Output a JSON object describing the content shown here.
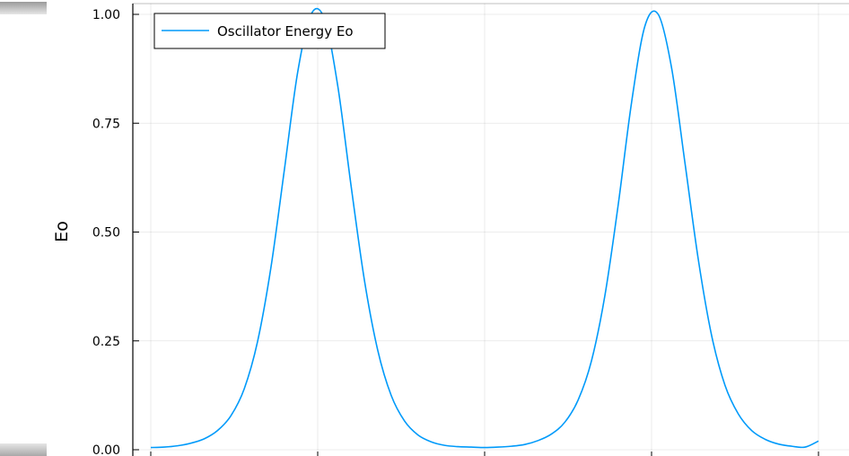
{
  "chart_data": {
    "type": "line",
    "title": "",
    "xlabel": "",
    "ylabel": "Eo",
    "xlim": [
      0,
      1
    ],
    "ylim": [
      0,
      1.0
    ],
    "yticks": [
      0.0,
      0.25,
      0.5,
      0.75,
      1.0
    ],
    "ytick_labels": [
      "0.00",
      "0.25",
      "0.50",
      "0.75",
      "1.00"
    ],
    "xticks": [
      0.0,
      0.25,
      0.5,
      0.75,
      1.0
    ],
    "grid": true,
    "legend_position": "top-left",
    "series": [
      {
        "name": "Oscillator Energy Eo",
        "color": "#009AFA",
        "x": [
          0.0,
          0.02,
          0.04,
          0.06,
          0.08,
          0.1,
          0.12,
          0.14,
          0.16,
          0.18,
          0.2,
          0.22,
          0.24,
          0.26,
          0.28,
          0.3,
          0.32,
          0.34,
          0.36,
          0.38,
          0.4,
          0.42,
          0.44,
          0.46,
          0.48,
          0.5,
          0.52,
          0.54,
          0.56,
          0.58,
          0.6,
          0.62,
          0.64,
          0.66,
          0.68,
          0.7,
          0.72,
          0.74,
          0.76,
          0.78,
          0.8,
          0.82,
          0.84,
          0.86,
          0.88,
          0.9,
          0.92,
          0.94,
          0.96,
          0.98,
          1.0
        ],
        "values": [
          0.005,
          0.006,
          0.009,
          0.015,
          0.025,
          0.044,
          0.078,
          0.14,
          0.249,
          0.419,
          0.642,
          0.867,
          1.0,
          0.99,
          0.836,
          0.606,
          0.389,
          0.228,
          0.125,
          0.066,
          0.034,
          0.018,
          0.01,
          0.007,
          0.006,
          0.005,
          0.006,
          0.008,
          0.012,
          0.021,
          0.036,
          0.063,
          0.114,
          0.204,
          0.353,
          0.562,
          0.797,
          0.973,
          1.0,
          0.877,
          0.659,
          0.437,
          0.262,
          0.148,
          0.082,
          0.044,
          0.024,
          0.013,
          0.008,
          0.006,
          0.02
        ]
      }
    ]
  }
}
